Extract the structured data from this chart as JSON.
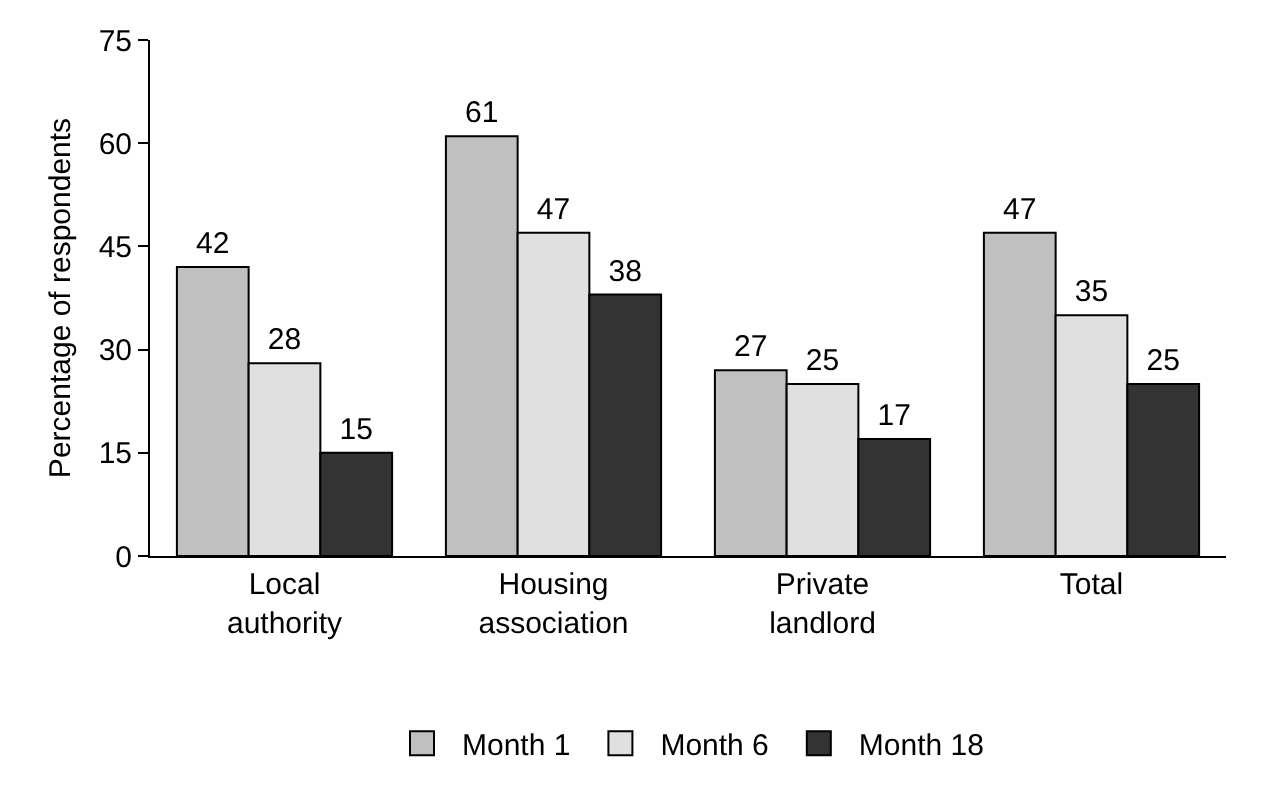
{
  "chart_data": {
    "type": "bar",
    "ylabel": "Percentage of respondents",
    "categories": [
      "Local authority",
      "Housing association",
      "Private landlord",
      "Total"
    ],
    "series": [
      {
        "name": "Month 1",
        "color": "#c0c0c0",
        "values": [
          42,
          61,
          27,
          47
        ]
      },
      {
        "name": "Month 6",
        "color": "#e0e0e0",
        "values": [
          28,
          47,
          25,
          35
        ]
      },
      {
        "name": "Month 18",
        "color": "#333333",
        "values": [
          15,
          38,
          17,
          25
        ]
      }
    ],
    "ylim": [
      0,
      75
    ],
    "yticks": [
      0,
      15,
      30,
      45,
      60,
      75
    ],
    "grid": false,
    "legend": "bottom",
    "data_labels": true
  }
}
